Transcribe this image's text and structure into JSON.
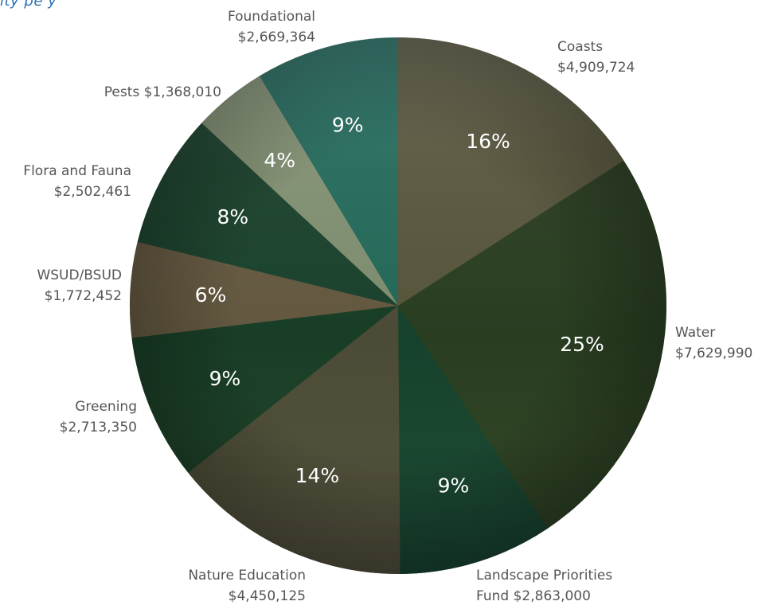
{
  "page": {
    "cut_title": "ity pe  y"
  },
  "chart_data": {
    "type": "pie",
    "title": "",
    "start_angle_deg": 0,
    "direction": "clockwise",
    "slices": [
      {
        "name": "Coasts",
        "value": 4909724,
        "label_lines": [
          "Coasts",
          "$4,909,724"
        ],
        "percent_label": "16%",
        "color": "#5c5840"
      },
      {
        "name": "Water",
        "value": 7629990,
        "label_lines": [
          "Water",
          "$7,629,990"
        ],
        "percent_label": "25%",
        "color": "#243b20"
      },
      {
        "name": "Landscape Priorities Fund",
        "value": 2863000,
        "label_lines": [
          "Landscape Priorities",
          "Fund $2,863,000"
        ],
        "percent_label": "9%",
        "color": "#0d3f2e"
      },
      {
        "name": "Nature Education",
        "value": 4450125,
        "label_lines": [
          "Nature Education",
          "$4,450,125"
        ],
        "percent_label": "14%",
        "color": "#4e4a3b"
      },
      {
        "name": "Greening",
        "value": 2713350,
        "label_lines": [
          "Greening",
          "$2,713,350"
        ],
        "percent_label": "9%",
        "color": "#113a26"
      },
      {
        "name": "WSUD/BSUD",
        "value": 1772452,
        "label_lines": [
          "WSUD/BSUD",
          "$1,772,452"
        ],
        "percent_label": "6%",
        "color": "#6b5a44"
      },
      {
        "name": "Flora and Fauna",
        "value": 2502461,
        "label_lines": [
          "Flora and Fauna",
          "$2,502,461"
        ],
        "percent_label": "8%",
        "color": "#123f2c"
      },
      {
        "name": "Pests",
        "value": 1368010,
        "label_lines": [
          "Pests $1,368,010"
        ],
        "percent_label": "4%",
        "color": "#8a9a7c"
      },
      {
        "name": "Foundational",
        "value": 2669364,
        "label_lines": [
          "Foundational",
          "$2,669,364"
        ],
        "percent_label": "9%",
        "color": "#1f6e62"
      }
    ]
  }
}
